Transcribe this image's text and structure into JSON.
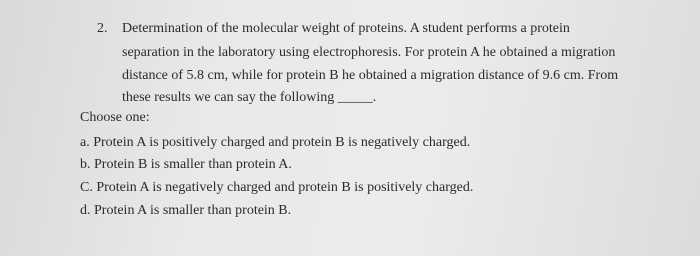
{
  "question": {
    "number": "2.",
    "lines": [
      "Determination of the molecular weight of proteins. A student performs a protein",
      "separation in the laboratory using electrophoresis. For protein A he obtained a migration",
      "distance of 5.8 cm, while for protein B he obtained a migration distance of 9.6 cm. From",
      "these results we can say the following _____."
    ]
  },
  "prompt": "Choose one:",
  "options": [
    "a. Protein A is positively charged and protein B is negatively charged.",
    "b. Protein B is smaller than protein A.",
    "C. Protein A is negatively charged and protein B is positively charged.",
    "d. Protein A is smaller than protein B."
  ]
}
